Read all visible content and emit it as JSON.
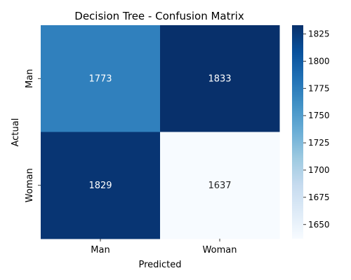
{
  "chart_data": {
    "type": "heatmap",
    "title": "Decision Tree - Confusion Matrix",
    "xlabel": "Predicted",
    "ylabel": "Actual",
    "x_categories": [
      "Man",
      "Woman"
    ],
    "y_categories": [
      "Man",
      "Woman"
    ],
    "values": [
      [
        1773,
        1833
      ],
      [
        1829,
        1637
      ]
    ],
    "colorscale": "Blues",
    "colorbar": {
      "min": 1637,
      "max": 1833,
      "ticks": [
        1650,
        1675,
        1700,
        1725,
        1750,
        1775,
        1800,
        1825
      ]
    },
    "grid": false
  }
}
